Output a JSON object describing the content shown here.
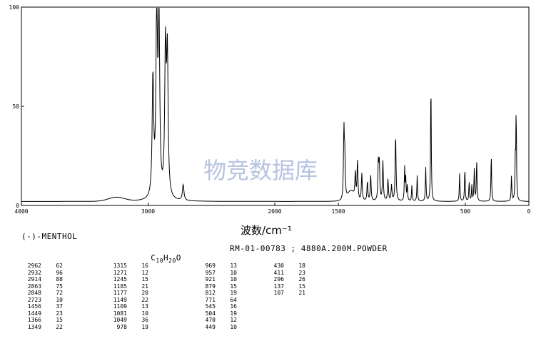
{
  "compound_name": "(-)-MENTHOL",
  "formula": {
    "base1": "C",
    "sub1": "10",
    "base2": "H",
    "sub2": "20",
    "base3": "O"
  },
  "record_info": "RM-01-00783 ; 4880A.200M.POWDER",
  "watermark_text": "物竞数据库",
  "line_color": "#000000",
  "watermark_color": "#9fb0d6",
  "peak_table": [
    [
      [
        "2962",
        "62"
      ],
      [
        "2932",
        "96"
      ],
      [
        "2914",
        "88"
      ],
      [
        "2863",
        "75"
      ],
      [
        "2848",
        "72"
      ],
      [
        "2723",
        "10"
      ],
      [
        "1456",
        "37"
      ],
      [
        "1449",
        "23"
      ],
      [
        "1366",
        "15"
      ],
      [
        "1349",
        "22"
      ]
    ],
    [
      [
        "1315",
        "16"
      ],
      [
        "1271",
        "12"
      ],
      [
        "1245",
        "15"
      ],
      [
        "1185",
        "21"
      ],
      [
        "1177",
        "20"
      ],
      [
        "1149",
        "22"
      ],
      [
        "1109",
        "13"
      ],
      [
        "1081",
        "10"
      ],
      [
        "1049",
        "36"
      ],
      [
        "978",
        "19"
      ]
    ],
    [
      [
        "969",
        "13"
      ],
      [
        "957",
        "10"
      ],
      [
        "921",
        "10"
      ],
      [
        "879",
        "15"
      ],
      [
        "812",
        "19"
      ],
      [
        "771",
        "64"
      ],
      [
        "545",
        "16"
      ],
      [
        "504",
        "19"
      ],
      [
        "470",
        "12"
      ],
      [
        "449",
        "10"
      ]
    ],
    [
      [
        "430",
        "18"
      ],
      [
        "411",
        "23"
      ],
      [
        "296",
        "26"
      ],
      [
        "137",
        "15"
      ],
      [
        "107",
        "21"
      ]
    ]
  ],
  "chart_data": {
    "type": "line",
    "title": "",
    "xlabel": "波数/cm⁻¹",
    "ylabel": "",
    "xlim": [
      4000,
      0
    ],
    "ylim": [
      0,
      100
    ],
    "x_ticks": [
      4000,
      3000,
      2000,
      1500,
      500,
      0
    ],
    "x_tick_labels": [
      "4000",
      "3000",
      "2000",
      "1500",
      "500",
      "0"
    ],
    "y_ticks": [
      0,
      50,
      100
    ],
    "y_tick_labels": [
      "0",
      "50",
      "100"
    ],
    "grid": false,
    "baseline": 2,
    "broad_bands": [
      {
        "x": 3250,
        "y": 4,
        "width": 90
      },
      {
        "x": 1400,
        "y": 7,
        "width": 35
      }
    ],
    "series": [
      {
        "peaks": [
          {
            "x": 2962,
            "y": 62
          },
          {
            "x": 2932,
            "y": 96
          },
          {
            "x": 2914,
            "y": 88
          },
          {
            "x": 2863,
            "y": 75
          },
          {
            "x": 2848,
            "y": 72
          },
          {
            "x": 2723,
            "y": 10
          },
          {
            "x": 1456,
            "y": 37
          },
          {
            "x": 1449,
            "y": 23
          },
          {
            "x": 1366,
            "y": 15
          },
          {
            "x": 1349,
            "y": 22
          },
          {
            "x": 1315,
            "y": 16
          },
          {
            "x": 1271,
            "y": 12
          },
          {
            "x": 1245,
            "y": 15
          },
          {
            "x": 1185,
            "y": 21
          },
          {
            "x": 1177,
            "y": 20
          },
          {
            "x": 1149,
            "y": 22
          },
          {
            "x": 1109,
            "y": 13
          },
          {
            "x": 1081,
            "y": 10
          },
          {
            "x": 1049,
            "y": 36
          },
          {
            "x": 978,
            "y": 19
          },
          {
            "x": 969,
            "y": 13
          },
          {
            "x": 957,
            "y": 10
          },
          {
            "x": 921,
            "y": 10
          },
          {
            "x": 879,
            "y": 15
          },
          {
            "x": 812,
            "y": 19
          },
          {
            "x": 771,
            "y": 64
          },
          {
            "x": 545,
            "y": 16
          },
          {
            "x": 504,
            "y": 19
          },
          {
            "x": 470,
            "y": 12
          },
          {
            "x": 449,
            "y": 10
          },
          {
            "x": 430,
            "y": 18
          },
          {
            "x": 411,
            "y": 23
          },
          {
            "x": 296,
            "y": 26
          },
          {
            "x": 137,
            "y": 15
          },
          {
            "x": 107,
            "y": 21
          },
          {
            "x": 100,
            "y": 47
          }
        ]
      }
    ]
  }
}
